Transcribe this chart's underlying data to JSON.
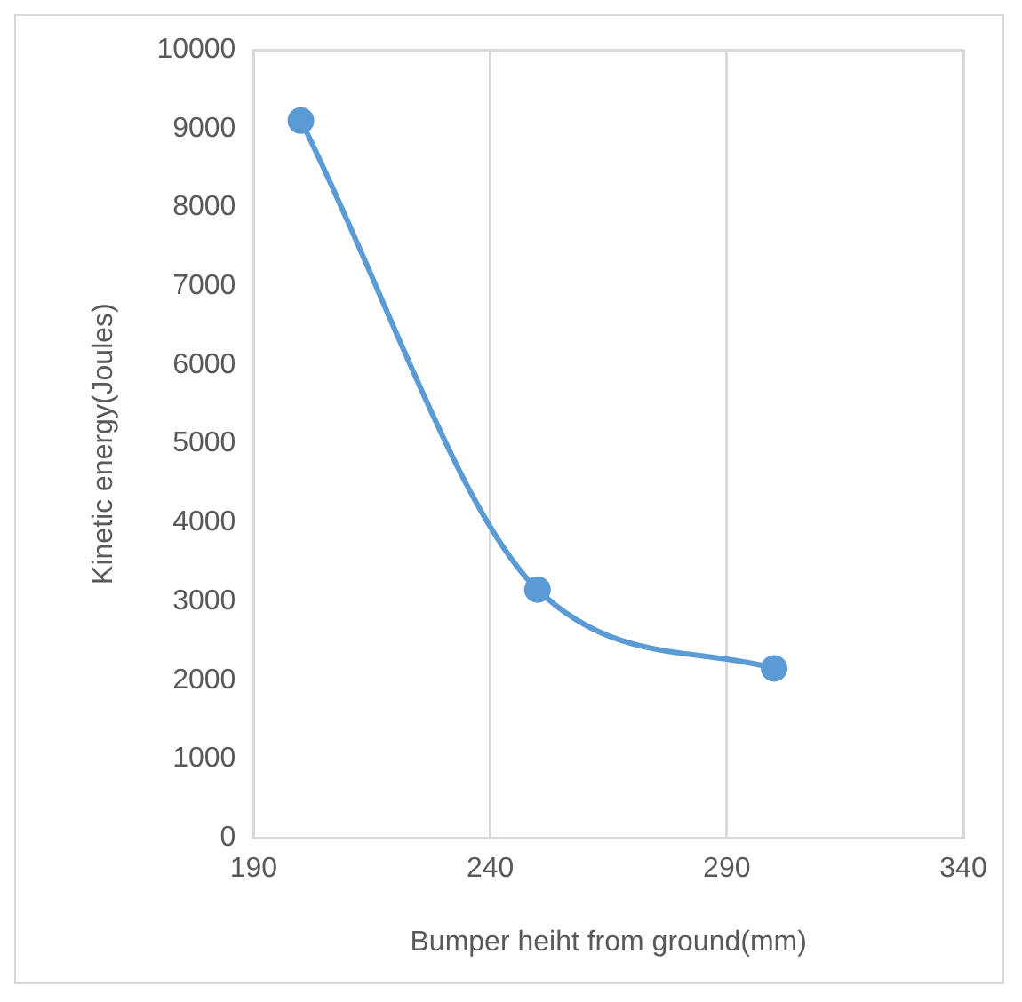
{
  "chart_data": {
    "type": "line",
    "xlabel": "Bumper heiht from ground(mm)",
    "ylabel": "Kinetic energy(Joules)",
    "x": [
      200,
      250,
      300
    ],
    "series": [
      {
        "color": "#5b9bd5",
        "values": [
          9100,
          3150,
          2150
        ]
      }
    ],
    "xlim": [
      190,
      340
    ],
    "xticks": [
      190,
      240,
      290,
      340
    ],
    "ylim": [
      0,
      10000
    ],
    "yticks": [
      0,
      1000,
      2000,
      3000,
      4000,
      5000,
      6000,
      7000,
      8000,
      9000,
      10000
    ],
    "grid": "x",
    "legend": false,
    "marker": "circle",
    "line_style": "solid"
  }
}
